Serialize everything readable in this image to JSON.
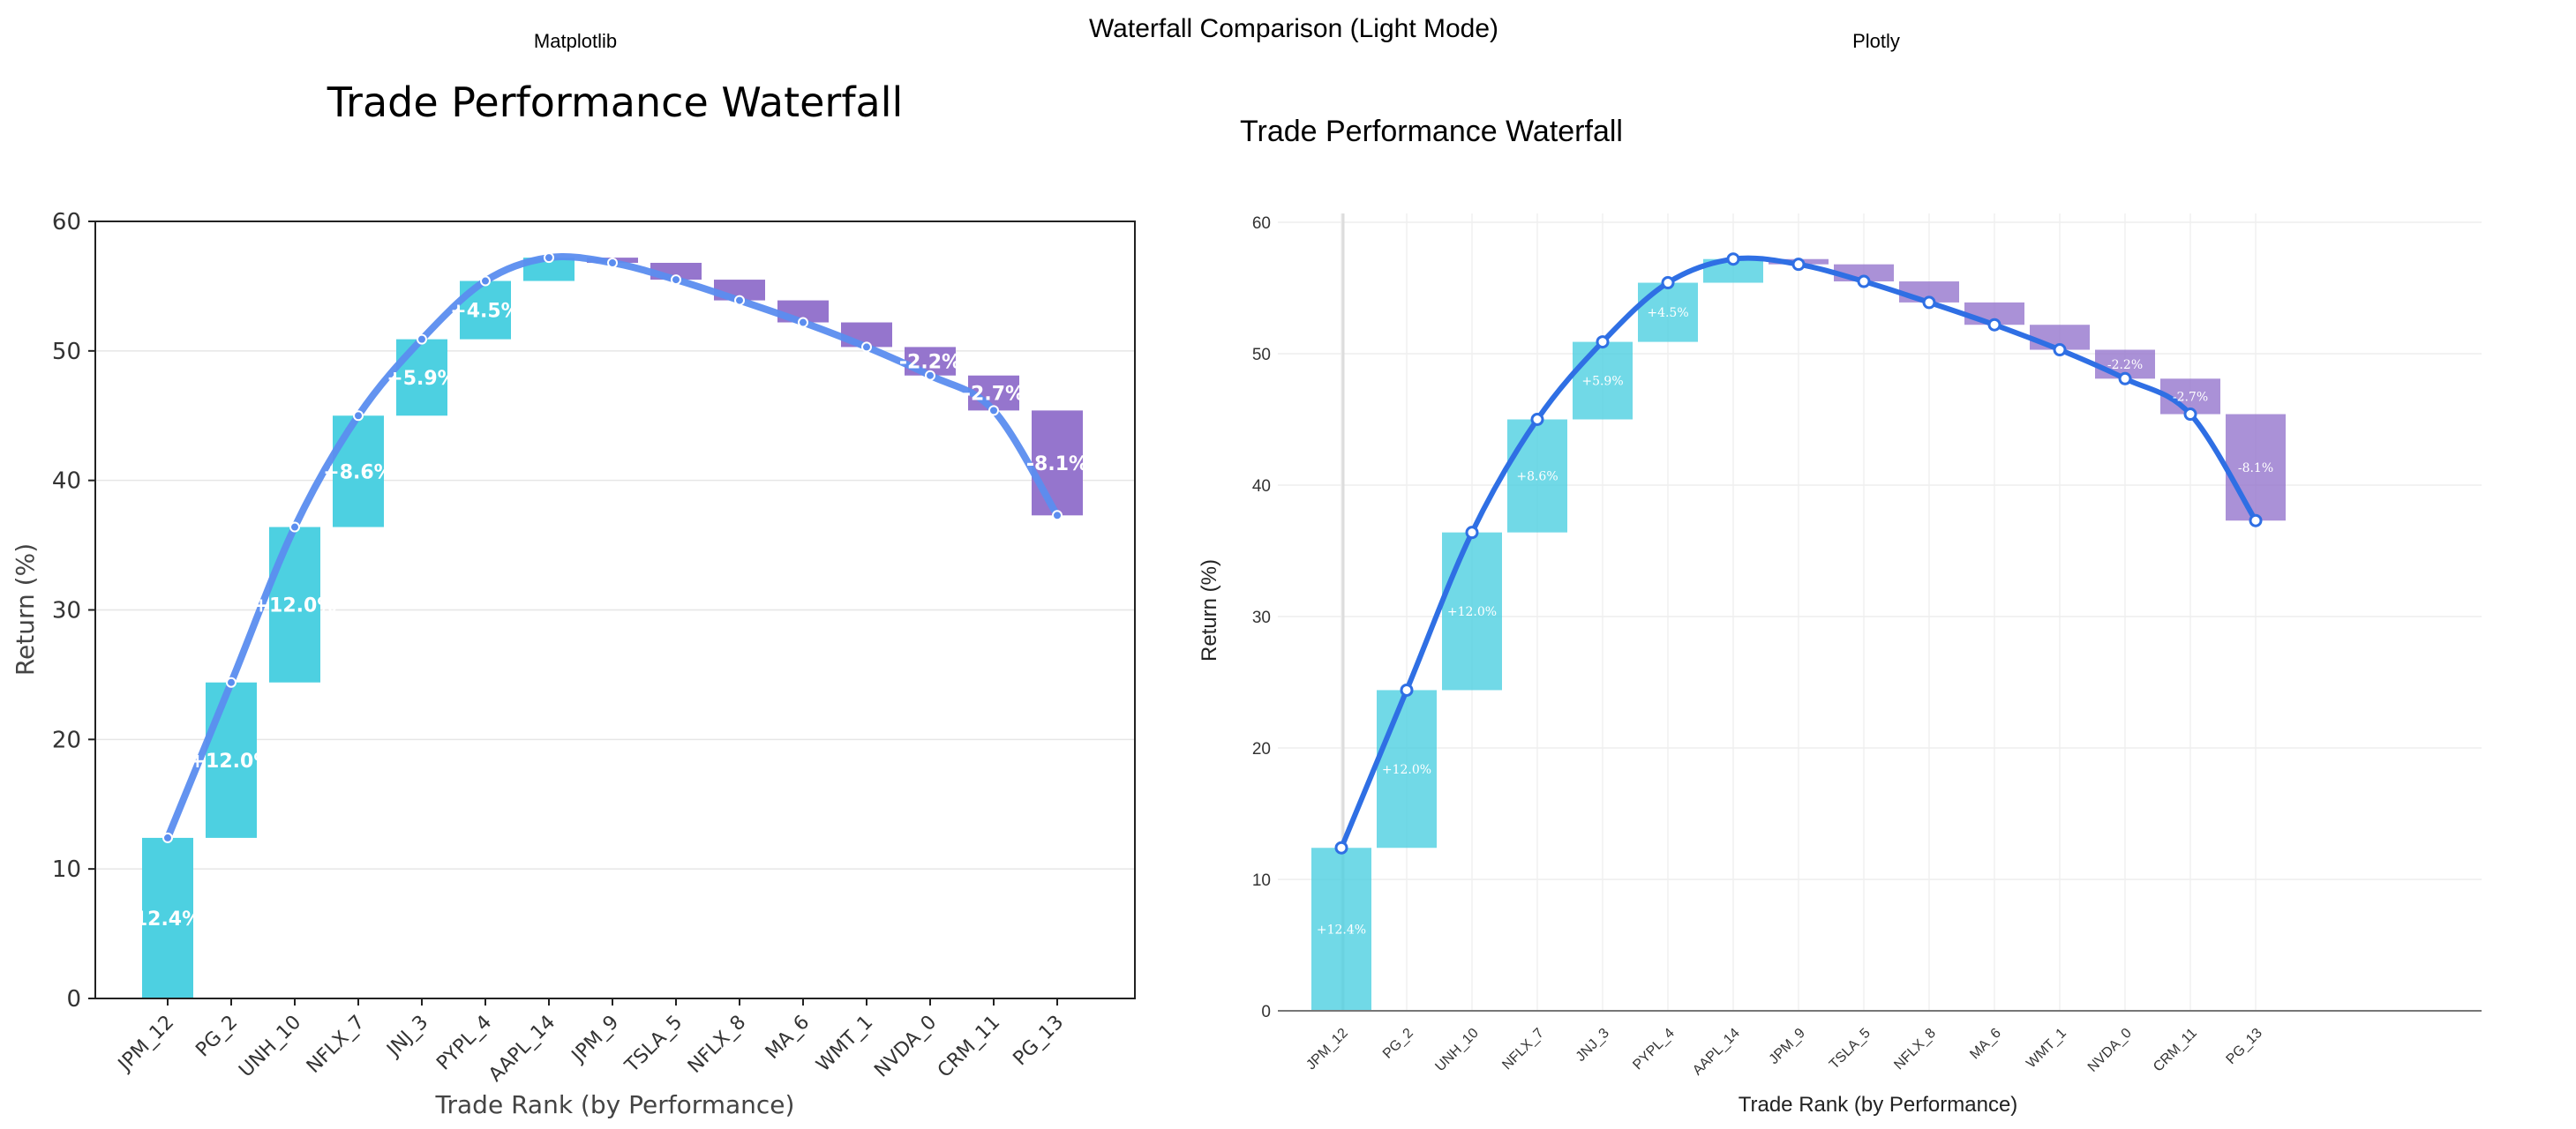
{
  "figure": {
    "title": "Waterfall Comparison (Light Mode)",
    "left_panel_label": "Matplotlib",
    "right_panel_label": "Plotly"
  },
  "colors": {
    "positive": "#4dd0e1",
    "negative": "#9575cd",
    "line_mpl": "#5b8def",
    "line_plotly": "#2f6fe4",
    "grid": "#e6e6e6"
  },
  "chart_data": [
    {
      "type": "bar",
      "subtype": "waterfall",
      "title": "Trade Performance Waterfall",
      "xlabel": "Trade Rank (by Performance)",
      "ylabel": "Return (%)",
      "ylim": [
        0,
        60
      ],
      "yticks": [
        0,
        10,
        20,
        30,
        40,
        50,
        60
      ],
      "grid": true,
      "categories": [
        "JPM_12",
        "PG_2",
        "UNH_10",
        "NFLX_7",
        "JNJ_3",
        "PYPL_4",
        "AAPL_14",
        "JPM_9",
        "TSLA_5",
        "NFLX_8",
        "MA_6",
        "WMT_1",
        "NVDA_0",
        "CRM_11",
        "PG_13"
      ],
      "values": [
        12.4,
        12.0,
        12.0,
        8.6,
        5.9,
        4.5,
        1.8,
        -0.4,
        -1.3,
        -1.6,
        -1.7,
        -1.9,
        -2.2,
        -2.7,
        -8.1
      ],
      "cumulative": [
        12.4,
        24.4,
        36.4,
        45.0,
        50.9,
        55.4,
        57.2,
        56.8,
        55.5,
        53.9,
        52.2,
        50.3,
        48.1,
        45.4,
        37.3
      ],
      "bar_labels": [
        "12.4%",
        "+12.0%",
        "+12.0%",
        "+8.6%",
        "+5.9%",
        "+4.5%",
        "",
        "",
        "",
        "",
        "",
        "",
        "-2.2%",
        "-2.7%",
        "-8.1%"
      ]
    },
    {
      "type": "bar",
      "subtype": "waterfall",
      "title": "Trade Performance Waterfall",
      "xlabel": "Trade Rank (by Performance)",
      "ylabel": "Return (%)",
      "ylim": [
        0,
        60
      ],
      "yticks": [
        0,
        10,
        20,
        30,
        40,
        50,
        60
      ],
      "grid": true,
      "categories": [
        "JPM_12",
        "PG_2",
        "UNH_10",
        "NFLX_7",
        "JNJ_3",
        "PYPL_4",
        "AAPL_14",
        "JPM_9",
        "TSLA_5",
        "NFLX_8",
        "MA_6",
        "WMT_1",
        "NVDA_0",
        "CRM_11",
        "PG_13"
      ],
      "values": [
        12.4,
        12.0,
        12.0,
        8.6,
        5.9,
        4.5,
        1.8,
        -0.4,
        -1.3,
        -1.6,
        -1.7,
        -1.9,
        -2.2,
        -2.7,
        -8.1
      ],
      "cumulative": [
        12.4,
        24.4,
        36.4,
        45.0,
        50.9,
        55.4,
        57.2,
        56.8,
        55.5,
        53.9,
        52.2,
        50.3,
        48.1,
        45.4,
        37.3
      ],
      "bar_labels": [
        "+12.4%",
        "+12.0%",
        "+12.0%",
        "+8.6%",
        "+5.9%",
        "+4.5%",
        "",
        "",
        "",
        "",
        "",
        "",
        "-2.2%",
        "-2.7%",
        "-8.1%"
      ]
    }
  ]
}
